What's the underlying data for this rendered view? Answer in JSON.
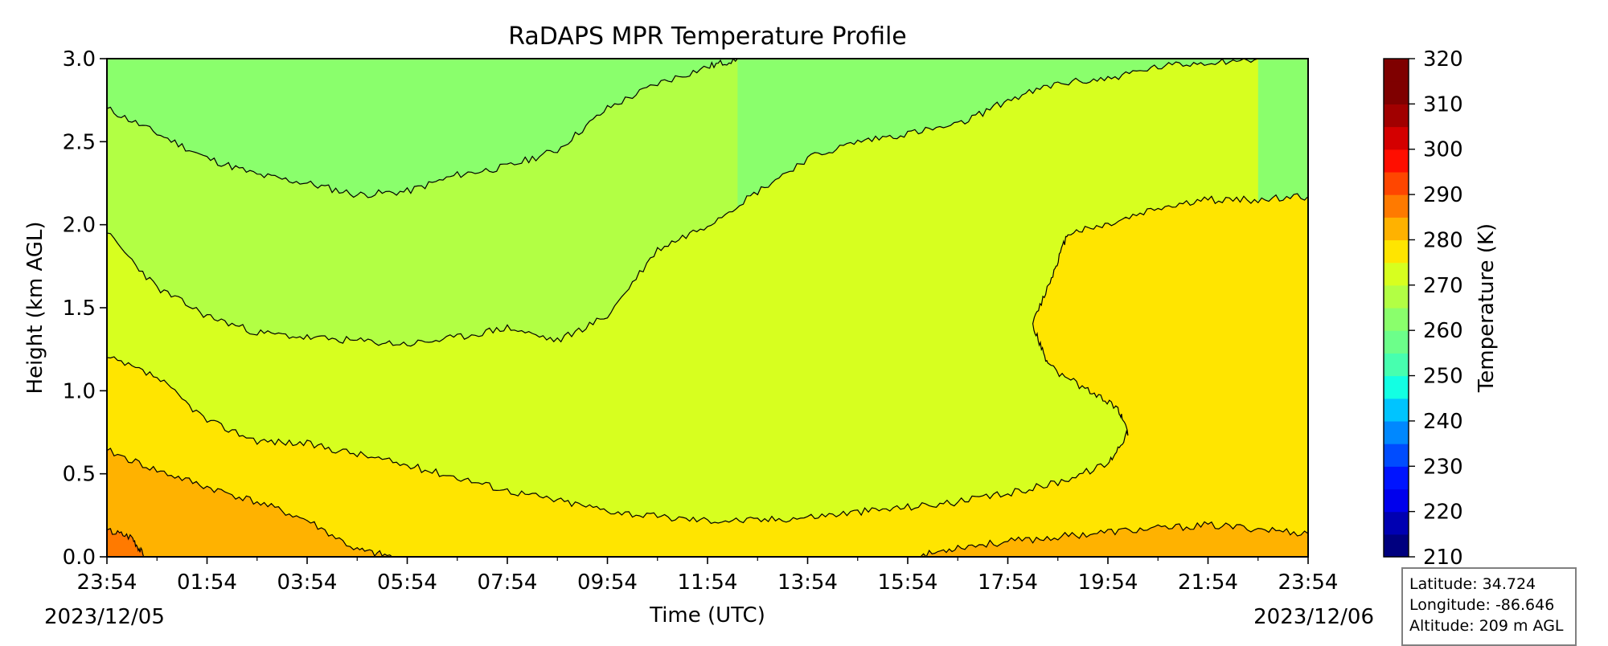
{
  "chart_data": {
    "type": "heatmap",
    "subtype": "filled-contour",
    "title": "RaDAPS MPR Temperature Profile",
    "xlabel": "Time (UTC)",
    "ylabel": "Height (km AGL)",
    "x_tick_labels": [
      "23:54",
      "01:54",
      "03:54",
      "05:54",
      "07:54",
      "09:54",
      "11:54",
      "13:54",
      "15:54",
      "17:54",
      "19:54",
      "21:54",
      "23:54"
    ],
    "x_range_hours": [
      0,
      24
    ],
    "x_start_date": "2023/12/05",
    "x_end_date": "2023/12/06",
    "y_ticks": [
      0.0,
      0.5,
      1.0,
      1.5,
      2.0,
      2.5,
      3.0
    ],
    "ylim": [
      0.0,
      3.0
    ],
    "colorbar": {
      "label": "Temperature (K)",
      "range": [
        210,
        320
      ],
      "tick_values": [
        210,
        220,
        230,
        240,
        250,
        260,
        270,
        280,
        290,
        300,
        310,
        320
      ],
      "level_step": 5,
      "colors": [
        "#00007f",
        "#0000b2",
        "#0000ed",
        "#0014ff",
        "#004cff",
        "#0088ff",
        "#00c4ff",
        "#13ffe3",
        "#47ffaf",
        "#6cff8a",
        "#8aff6c",
        "#b2ff44",
        "#d7ff1f",
        "#ffe500",
        "#ffb200",
        "#ff7a00",
        "#ff4600",
        "#ff0e00",
        "#d40000",
        "#a10000",
        "#7f0000",
        "#7f0000"
      ]
    },
    "contour_boundaries": [
      {
        "level_K": 265,
        "points_hours_km": [
          [
            0,
            2.7
          ],
          [
            1,
            2.55
          ],
          [
            2,
            2.4
          ],
          [
            3,
            2.3
          ],
          [
            4,
            2.25
          ],
          [
            5,
            2.18
          ],
          [
            6,
            2.2
          ],
          [
            7,
            2.3
          ],
          [
            8,
            2.35
          ],
          [
            9,
            2.45
          ],
          [
            10,
            2.7
          ],
          [
            11,
            2.85
          ],
          [
            12,
            2.95
          ],
          [
            12.6,
            3.0
          ]
        ]
      },
      {
        "level_K": 270,
        "points_hours_km": [
          [
            0,
            1.95
          ],
          [
            1,
            1.62
          ],
          [
            2,
            1.45
          ],
          [
            3,
            1.35
          ],
          [
            4,
            1.32
          ],
          [
            5,
            1.3
          ],
          [
            6,
            1.28
          ],
          [
            7,
            1.32
          ],
          [
            8,
            1.38
          ],
          [
            9,
            1.3
          ],
          [
            10,
            1.45
          ],
          [
            11,
            1.85
          ],
          [
            12,
            2.0
          ],
          [
            13,
            2.2
          ],
          [
            14,
            2.4
          ],
          [
            15,
            2.5
          ],
          [
            16,
            2.55
          ],
          [
            17,
            2.6
          ],
          [
            18,
            2.75
          ],
          [
            19,
            2.85
          ],
          [
            20,
            2.88
          ],
          [
            21,
            2.95
          ],
          [
            22,
            2.98
          ],
          [
            23,
            3.0
          ]
        ]
      },
      {
        "level_K": 275,
        "points_hours_km": [
          [
            0,
            1.2
          ],
          [
            1,
            1.08
          ],
          [
            2,
            0.82
          ],
          [
            3,
            0.7
          ],
          [
            4,
            0.68
          ],
          [
            5,
            0.62
          ],
          [
            6,
            0.55
          ],
          [
            7,
            0.48
          ],
          [
            8,
            0.4
          ],
          [
            9,
            0.34
          ],
          [
            10,
            0.28
          ],
          [
            11,
            0.24
          ],
          [
            12,
            0.22
          ],
          [
            13,
            0.22
          ],
          [
            14,
            0.24
          ],
          [
            15,
            0.27
          ],
          [
            16,
            0.3
          ],
          [
            17,
            0.33
          ],
          [
            18,
            0.38
          ],
          [
            19,
            0.45
          ],
          [
            20,
            0.56
          ],
          [
            20.4,
            0.75
          ],
          [
            20.2,
            0.9
          ],
          [
            19.6,
            1.0
          ],
          [
            18.8,
            1.15
          ],
          [
            18.5,
            1.4
          ],
          [
            18.9,
            1.7
          ],
          [
            19.2,
            1.95
          ],
          [
            20,
            2.0
          ],
          [
            21,
            2.1
          ],
          [
            22,
            2.15
          ],
          [
            23,
            2.15
          ],
          [
            24,
            2.17
          ]
        ]
      },
      {
        "level_K": 280,
        "points_hours_km": [
          [
            0,
            0.64
          ],
          [
            1,
            0.52
          ],
          [
            2,
            0.42
          ],
          [
            3,
            0.33
          ],
          [
            4,
            0.22
          ],
          [
            5,
            0.04
          ],
          [
            5.7,
            0.0
          ]
        ]
      },
      {
        "level_K": 280,
        "points_hours_km": [
          [
            16.2,
            0.0
          ],
          [
            17,
            0.06
          ],
          [
            18,
            0.09
          ],
          [
            19,
            0.12
          ],
          [
            20,
            0.15
          ],
          [
            21,
            0.17
          ],
          [
            22,
            0.19
          ],
          [
            23,
            0.17
          ],
          [
            24,
            0.14
          ]
        ]
      },
      {
        "level_K": 285,
        "points_hours_km": [
          [
            0,
            0.16
          ],
          [
            0.5,
            0.12
          ],
          [
            0.75,
            0.0
          ]
        ]
      }
    ]
  },
  "location": {
    "latitude_label": "Latitude: 34.724",
    "longitude_label": "Longitude: -86.646",
    "altitude_label": "Altitude: 209 m AGL"
  }
}
